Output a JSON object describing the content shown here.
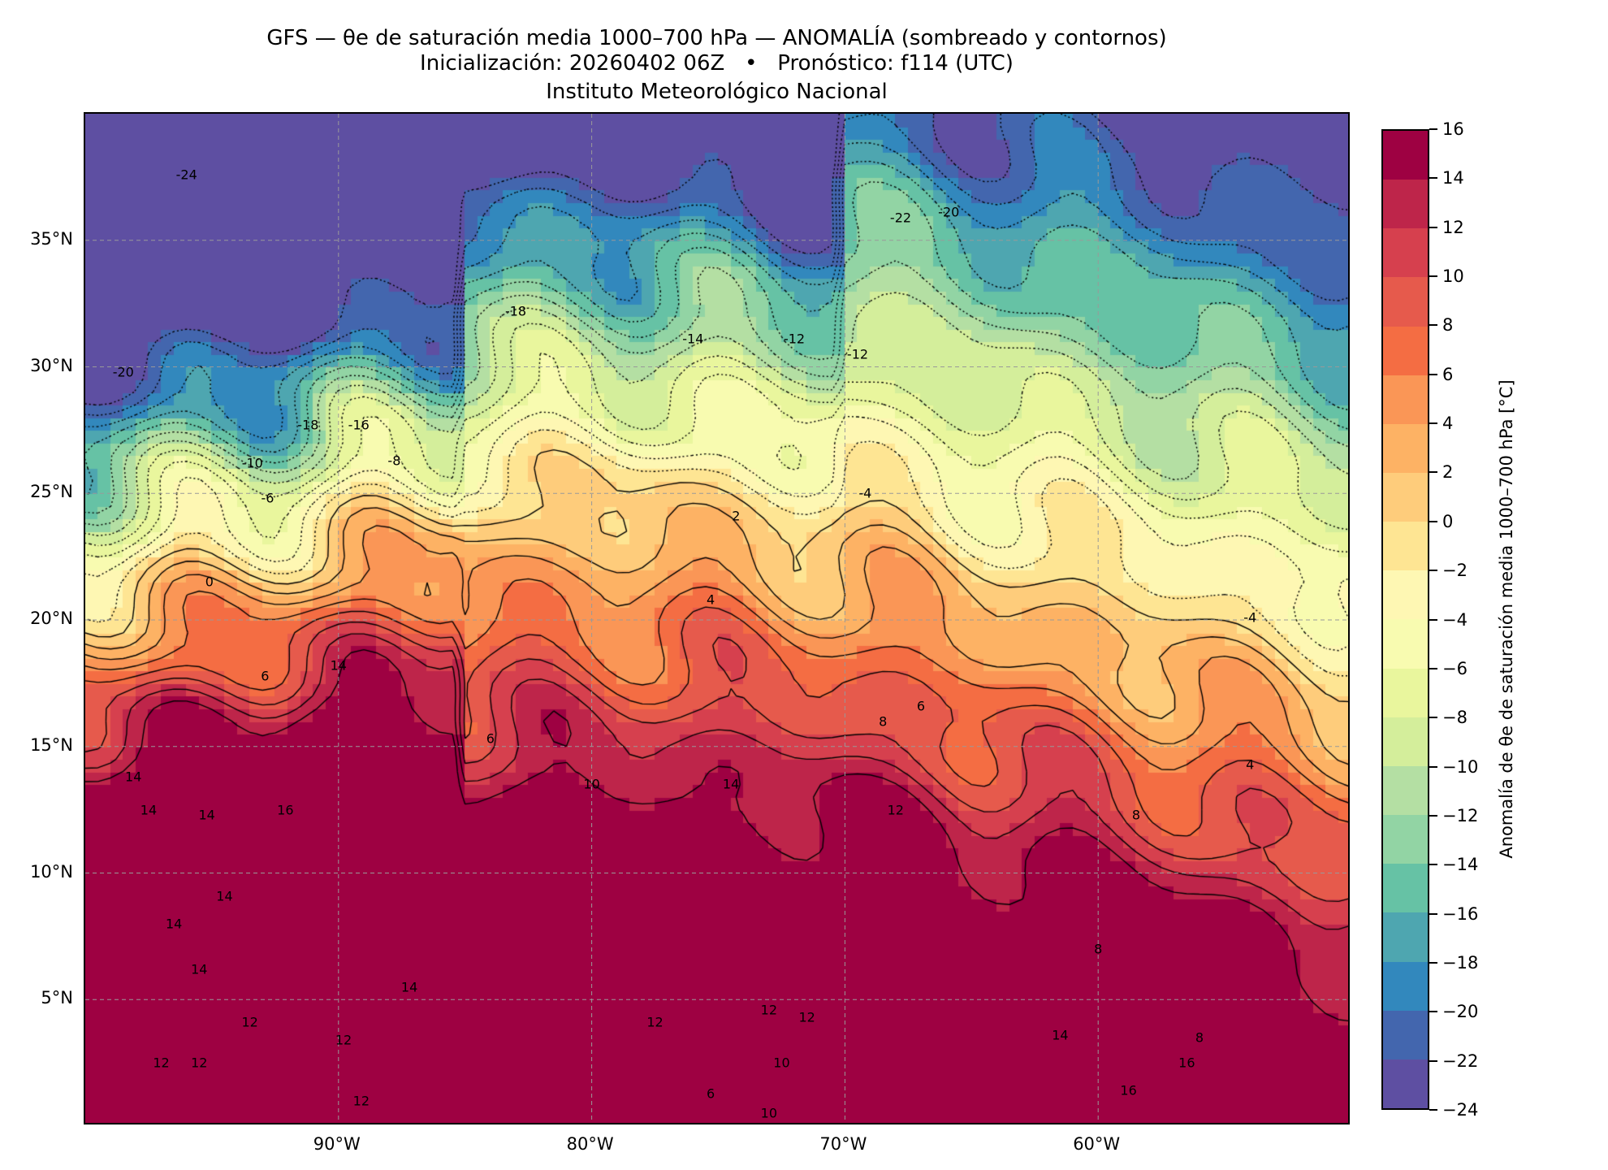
{
  "title": {
    "line1": "GFS — θe de saturación media 1000–700 hPa — ANOMALÍA (sombreado y contornos)",
    "line2": "Inicialización: 20260402 06Z   •   Pronóstico: f114 (UTC)",
    "line3": "Instituto Meteorológico Nacional"
  },
  "map": {
    "extent_lon": [
      -100,
      -50
    ],
    "extent_lat": [
      0,
      40
    ],
    "x_ticks": [
      {
        "lon": -90,
        "label": "90°W"
      },
      {
        "lon": -80,
        "label": "80°W"
      },
      {
        "lon": -70,
        "label": "70°W"
      },
      {
        "lon": -60,
        "label": "60°W"
      }
    ],
    "y_ticks": [
      {
        "lat": 35,
        "label": "35°N"
      },
      {
        "lat": 30,
        "label": "30°N"
      },
      {
        "lat": 25,
        "label": "25°N"
      },
      {
        "lat": 20,
        "label": "20°N"
      },
      {
        "lat": 15,
        "label": "15°N"
      },
      {
        "lat": 10,
        "label": "10°N"
      },
      {
        "lat": 5,
        "label": "5°N"
      }
    ],
    "contour_labels": [
      {
        "lon": -96,
        "lat": 37.6,
        "text": "-24"
      },
      {
        "lon": -83,
        "lat": 32.2,
        "text": "-18"
      },
      {
        "lon": -76,
        "lat": 31.1,
        "text": "-14"
      },
      {
        "lon": -72,
        "lat": 31.1,
        "text": "-12"
      },
      {
        "lon": -69.5,
        "lat": 30.5,
        "text": "-12"
      },
      {
        "lon": -67.8,
        "lat": 35.9,
        "text": "-22"
      },
      {
        "lon": -65.9,
        "lat": 36.1,
        "text": "-20"
      },
      {
        "lon": -98.5,
        "lat": 29.8,
        "text": "-20"
      },
      {
        "lon": -91.2,
        "lat": 27.7,
        "text": "-18"
      },
      {
        "lon": -89.2,
        "lat": 27.7,
        "text": "-16"
      },
      {
        "lon": -93.4,
        "lat": 26.2,
        "text": "-10"
      },
      {
        "lon": -87.8,
        "lat": 26.3,
        "text": "-8"
      },
      {
        "lon": -92.8,
        "lat": 24.8,
        "text": "-6"
      },
      {
        "lon": -69.2,
        "lat": 25.0,
        "text": "-4"
      },
      {
        "lon": -74.3,
        "lat": 24.1,
        "text": "2"
      },
      {
        "lon": -95.1,
        "lat": 21.5,
        "text": "0"
      },
      {
        "lon": -75.3,
        "lat": 20.8,
        "text": "4"
      },
      {
        "lon": -90,
        "lat": 18.2,
        "text": "14"
      },
      {
        "lon": -92.9,
        "lat": 17.8,
        "text": "6"
      },
      {
        "lon": -84,
        "lat": 15.3,
        "text": "6"
      },
      {
        "lon": -67,
        "lat": 16.6,
        "text": "6"
      },
      {
        "lon": -68.5,
        "lat": 16.0,
        "text": "8"
      },
      {
        "lon": -54,
        "lat": 20.1,
        "text": "-4"
      },
      {
        "lon": -54,
        "lat": 14.3,
        "text": "4"
      },
      {
        "lon": -80,
        "lat": 13.5,
        "text": "10"
      },
      {
        "lon": -74.5,
        "lat": 13.5,
        "text": "14"
      },
      {
        "lon": -68,
        "lat": 12.5,
        "text": "12"
      },
      {
        "lon": -58.5,
        "lat": 12.3,
        "text": "8"
      },
      {
        "lon": -98.1,
        "lat": 13.8,
        "text": "14"
      },
      {
        "lon": -97.5,
        "lat": 12.5,
        "text": "14"
      },
      {
        "lon": -95.2,
        "lat": 12.3,
        "text": "14"
      },
      {
        "lon": -92.1,
        "lat": 12.5,
        "text": "16"
      },
      {
        "lon": -94.5,
        "lat": 9.1,
        "text": "14"
      },
      {
        "lon": -96.5,
        "lat": 8,
        "text": "14"
      },
      {
        "lon": -95.5,
        "lat": 6.2,
        "text": "14"
      },
      {
        "lon": -87.2,
        "lat": 5.5,
        "text": "14"
      },
      {
        "lon": -93.5,
        "lat": 4.1,
        "text": "12"
      },
      {
        "lon": -89.8,
        "lat": 3.4,
        "text": "12"
      },
      {
        "lon": -97,
        "lat": 2.5,
        "text": "12"
      },
      {
        "lon": -95.5,
        "lat": 2.5,
        "text": "12"
      },
      {
        "lon": -89.1,
        "lat": 1.0,
        "text": "12"
      },
      {
        "lon": -77.5,
        "lat": 4.1,
        "text": "12"
      },
      {
        "lon": -73,
        "lat": 4.6,
        "text": "12"
      },
      {
        "lon": -71.5,
        "lat": 4.3,
        "text": "12"
      },
      {
        "lon": -72.5,
        "lat": 2.5,
        "text": "10"
      },
      {
        "lon": -73,
        "lat": 0.5,
        "text": "10"
      },
      {
        "lon": -75.3,
        "lat": 1.3,
        "text": "6"
      },
      {
        "lon": -60,
        "lat": 7,
        "text": "8"
      },
      {
        "lon": -56,
        "lat": 3.5,
        "text": "8"
      },
      {
        "lon": -61.5,
        "lat": 3.6,
        "text": "14"
      },
      {
        "lon": -56.5,
        "lat": 2.5,
        "text": "16"
      },
      {
        "lon": -58.8,
        "lat": 1.4,
        "text": "16"
      }
    ]
  },
  "colorbar": {
    "label": "Anomalía de θe de saturación media 1000–700 hPa [°C]",
    "levels": [
      -24,
      -22,
      -20,
      -18,
      -16,
      -14,
      -12,
      -10,
      -8,
      -6,
      -4,
      -2,
      0,
      2,
      4,
      6,
      8,
      10,
      12,
      14,
      16
    ],
    "tick_labels": [
      "−24",
      "−22",
      "−20",
      "−18",
      "−16",
      "−14",
      "−12",
      "−10",
      "−8",
      "−6",
      "−4",
      "−2",
      "0",
      "2",
      "4",
      "6",
      "8",
      "10",
      "12",
      "14",
      "16"
    ],
    "colors": [
      "#5e4fa2",
      "#4366ae",
      "#3288bd",
      "#4ea6b0",
      "#66c2a5",
      "#92d4a4",
      "#b4dfa3",
      "#d4ee9b",
      "#e9f69d",
      "#f8fbb0",
      "#fef7b3",
      "#fee593",
      "#fecc7b",
      "#fdb264",
      "#fa9656",
      "#f46d43",
      "#e65a4c",
      "#d6404e",
      "#be254a",
      "#9e0142"
    ]
  }
}
